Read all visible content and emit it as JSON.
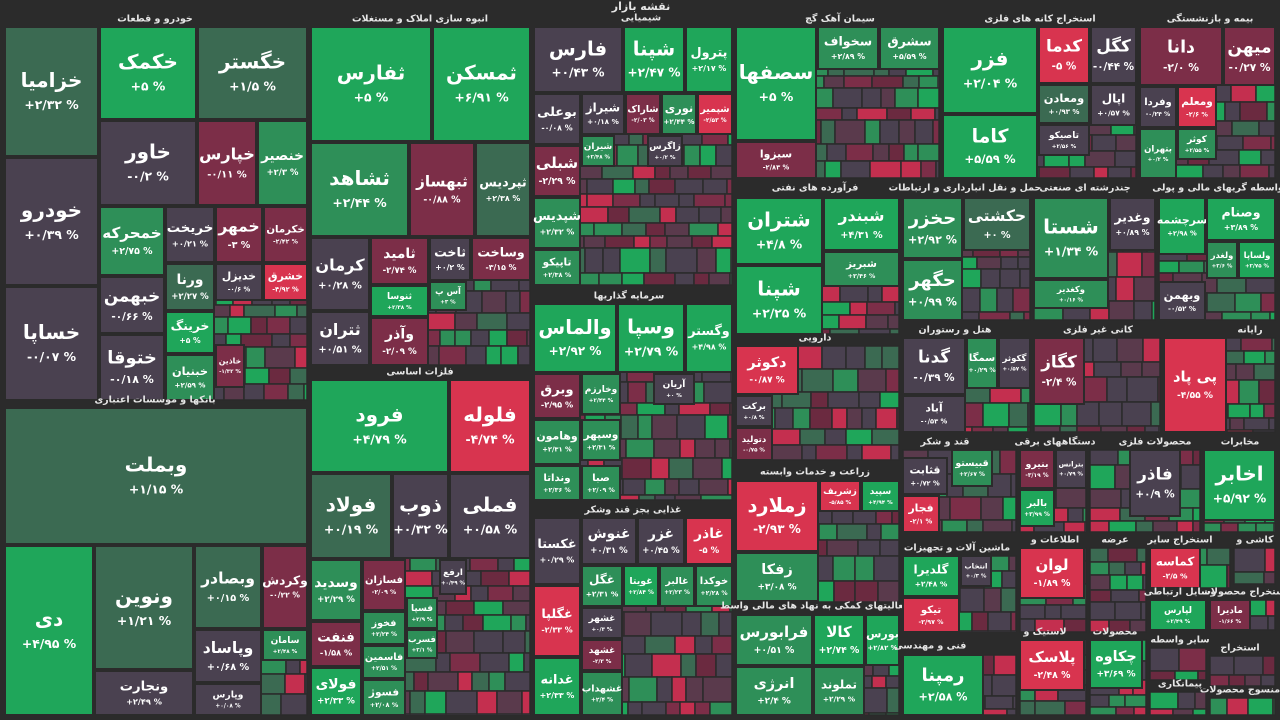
{
  "title": "نقشه بازار",
  "sectors": [
    {
      "name": "خودرو و قطعات",
      "tiles": [
        {
          "name": "خزامیا",
          "change": "+۲/۳۲ %"
        },
        {
          "name": "خودرو",
          "change": "+۰/۳۹ %"
        },
        {
          "name": "خساپا",
          "change": "-۰/۰۷ %"
        },
        {
          "name": "خکمک",
          "change": "+۵ %"
        },
        {
          "name": "خگستر",
          "change": "+۱/۵ %"
        },
        {
          "name": "خاور",
          "change": "-۰/۲ %"
        },
        {
          "name": "خپارس",
          "change": "-۰/۱۱ %"
        },
        {
          "name": "خنصیر",
          "change": "+۲/۳ %"
        },
        {
          "name": "خمحرکه",
          "change": "+۲/۷۵ %"
        },
        {
          "name": "خریخت",
          "change": "+۰/۲۱ %"
        },
        {
          "name": "خمهر",
          "change": "-۳ %"
        },
        {
          "name": "خکرمان",
          "change": "-۲/۴۲ %"
        },
        {
          "name": "خبهمن",
          "change": "-۰/۶۶ %"
        },
        {
          "name": "ورنا",
          "change": "+۲/۲۷ %"
        },
        {
          "name": "خدیزل",
          "change": "-۰/۶ %"
        },
        {
          "name": "خشرق",
          "change": "-۴/۹۲ %"
        },
        {
          "name": "خرینگ",
          "change": "+۵ %"
        },
        {
          "name": "ختوقا",
          "change": "-۰/۱۸ %"
        },
        {
          "name": "خبنیان",
          "change": "+۲/۵۹ %"
        },
        {
          "name": "خاذین",
          "change": "-۱/۳۲ %"
        }
      ]
    },
    {
      "name": "بانکها و موسسات اعتباری",
      "tiles": [
        {
          "name": "وبملت",
          "change": "+۱/۱۵ %"
        },
        {
          "name": "دی",
          "change": "+۴/۹۵ %"
        },
        {
          "name": "ونوین",
          "change": "+۱/۲۱ %"
        },
        {
          "name": "وبصادر",
          "change": "+۰/۱۵ %"
        },
        {
          "name": "وکردش",
          "change": "-۰/۲۲ %"
        },
        {
          "name": "ونجارت",
          "change": "+۲/۴۹ %"
        },
        {
          "name": "وپاساد",
          "change": "+۰/۶۸ %"
        },
        {
          "name": "سامان",
          "change": "+۲/۴۸ %"
        },
        {
          "name": "وپارس",
          "change": "+۰/۰۸ %"
        }
      ]
    },
    {
      "name": "انبوه سازی املاک و مستغلات",
      "tiles": [
        {
          "name": "ثفارس",
          "change": "+۵ %"
        },
        {
          "name": "ثمسکن",
          "change": "+۶/۹۱ %"
        },
        {
          "name": "ثشاهد",
          "change": "+۲/۴۴ %"
        },
        {
          "name": "ثبهساز",
          "change": "-۰/۸۸ %"
        },
        {
          "name": "ثپردیس",
          "change": "+۲/۳۸ %"
        },
        {
          "name": "کرمان",
          "change": "+۰/۲۸ %"
        },
        {
          "name": "ثامید",
          "change": "-۲/۷۴ %"
        },
        {
          "name": "ثاخت",
          "change": "+۰/۲ %"
        },
        {
          "name": "وساخت",
          "change": "-۳/۱۵ %"
        },
        {
          "name": "ثنوسا",
          "change": "+۲/۳۸ %"
        },
        {
          "name": "آس پ",
          "change": "+۳ %"
        },
        {
          "name": "ثتران",
          "change": "+۰/۵۱ %"
        },
        {
          "name": "وآذر",
          "change": "-۲/۰۹ %"
        }
      ]
    },
    {
      "name": "فلزات اساسی",
      "tiles": [
        {
          "name": "فرود",
          "change": "+۴/۷۹ %"
        },
        {
          "name": "فلوله",
          "change": "-۴/۷۴ %"
        },
        {
          "name": "فولاد",
          "change": "+۰/۱۹ %"
        },
        {
          "name": "ذوب",
          "change": "+۰/۳۲ %"
        },
        {
          "name": "فملی",
          "change": "+۰/۵۸ %"
        },
        {
          "name": "فسازان",
          "change": "-۲/۰۹ %"
        },
        {
          "name": "ارفع",
          "change": "+۰/۴۹ %"
        },
        {
          "name": "وسدید",
          "change": "+۲/۲۹ %"
        },
        {
          "name": "فنفت",
          "change": "-۱/۵۸ %"
        },
        {
          "name": "فخوز",
          "change": "+۲/۲۴ %"
        },
        {
          "name": "فولای",
          "change": "+۲/۳۳ %"
        },
        {
          "name": "فاسمین",
          "change": "+۲/۵۱ %"
        },
        {
          "name": "فسپا",
          "change": "+۲/۹ %"
        },
        {
          "name": "فسرب",
          "change": "+۲/۱ %"
        },
        {
          "name": "فسوژ",
          "change": "+۲/۰۸ %"
        }
      ]
    },
    {
      "name": "شیمیایی",
      "tiles": [
        {
          "name": "فارس",
          "change": "+۰/۴۳ %"
        },
        {
          "name": "شپنا",
          "change": "+۲/۴۷ %"
        },
        {
          "name": "پترول",
          "change": "+۲/۱۷ %"
        },
        {
          "name": "بوعلی",
          "change": "-۰/۰۸ %"
        },
        {
          "name": "شیراز",
          "change": "+۰/۱۸ %"
        },
        {
          "name": "شاراک",
          "change": "-۲/۰۳ %"
        },
        {
          "name": "نوری",
          "change": "+۲/۴۴ %"
        },
        {
          "name": "شپمیر",
          "change": "-۲/۵۳ %"
        },
        {
          "name": "شیران",
          "change": "+۲/۴۸ %"
        },
        {
          "name": "زاگرس",
          "change": "+۰/۲ %"
        },
        {
          "name": "شبلی",
          "change": "-۲/۲۹ %"
        },
        {
          "name": "شپدیس",
          "change": "+۲/۳۲ %"
        },
        {
          "name": "تاپیکو",
          "change": "+۲/۳۸ %"
        }
      ]
    },
    {
      "name": "سرمایه گذاریها",
      "tiles": [
        {
          "name": "والماس",
          "change": "+۲/۹۲ %"
        },
        {
          "name": "وسپا",
          "change": "+۲/۷۹ %"
        },
        {
          "name": "وگستر",
          "change": "+۴/۹۸ %"
        },
        {
          "name": "وبرق",
          "change": "-۲/۹۵ %"
        },
        {
          "name": "وخارزم",
          "change": "+۲/۴۴ %"
        },
        {
          "name": "آریان",
          "change": "+۰ %"
        },
        {
          "name": "وهامون",
          "change": "+۲/۳۱ %"
        },
        {
          "name": "وسپهر",
          "change": "+۲/۳۱ %"
        },
        {
          "name": "ونداتا",
          "change": "+۲/۳۶ %"
        },
        {
          "name": "صبا",
          "change": "+۲/۰۹ %"
        }
      ]
    },
    {
      "name": "غذایی بجز قند وشکر",
      "tiles": [
        {
          "name": "غکستا",
          "change": "+۰/۲۹ %"
        },
        {
          "name": "غنوش",
          "change": "+۰/۳۱ %"
        },
        {
          "name": "غزر",
          "change": "+۰/۴۵ %"
        },
        {
          "name": "غاذر",
          "change": "-۵ %"
        },
        {
          "name": "غگل",
          "change": "+۲/۳۱ %"
        },
        {
          "name": "غویتا",
          "change": "+۲/۸۴ %"
        },
        {
          "name": "غالبر",
          "change": "+۲/۲۳ %"
        },
        {
          "name": "خوکدا",
          "change": "+۲/۲۸ %"
        },
        {
          "name": "غگلپا",
          "change": "-۲/۳۳ %"
        },
        {
          "name": "غشهر",
          "change": "+۰/۳ %"
        },
        {
          "name": "غشهد",
          "change": "-۲/۳ %"
        },
        {
          "name": "غدانه",
          "change": "+۲/۳۳ %"
        },
        {
          "name": "غشهداب",
          "change": "+۲/۴ %"
        }
      ]
    },
    {
      "name": "سیمان آهک گچ",
      "tiles": [
        {
          "name": "سصفها",
          "change": "+۵ %"
        },
        {
          "name": "سخواف",
          "change": "+۲/۸۹ %"
        },
        {
          "name": "سشرق",
          "change": "+۵/۵۹ %"
        },
        {
          "name": "سیزوا",
          "change": "-۲/۸۳ %"
        }
      ]
    },
    {
      "name": "فرآورده های نفتی",
      "tiles": [
        {
          "name": "شتران",
          "change": "+۴/۸ %"
        },
        {
          "name": "شبندر",
          "change": "+۴/۳۱ %"
        },
        {
          "name": "شبریز",
          "change": "+۲/۴۶ %"
        },
        {
          "name": "شپنا",
          "change": "+۲/۲۵ %"
        }
      ]
    },
    {
      "name": "دارویی",
      "tiles": [
        {
          "name": "دکوثر",
          "change": "-۰/۸۷ %"
        },
        {
          "name": "برکت",
          "change": "+۰/۸ %"
        },
        {
          "name": "دتولید",
          "change": "-۰/۷۵ %"
        }
      ]
    },
    {
      "name": "زراعت و خدمات وابسته",
      "tiles": [
        {
          "name": "زملارد",
          "change": "-۲/۹۳ %"
        },
        {
          "name": "زشریف",
          "change": "-۵/۸۵ %"
        },
        {
          "name": "سپید",
          "change": "+۴/۹۴ %"
        },
        {
          "name": "زفکا",
          "change": "+۳/۰۸ %"
        }
      ]
    },
    {
      "name": "فعالیتهای کمکی به نهاد های مالی واسط",
      "tiles": [
        {
          "name": "فرابورس",
          "change": "+۰/۵۱ %"
        },
        {
          "name": "کالا",
          "change": "+۲/۷۴ %"
        },
        {
          "name": "بورس",
          "change": "+۲/۸۲ %"
        },
        {
          "name": "انرژی",
          "change": "+۲/۴ %"
        },
        {
          "name": "تملوند",
          "change": "+۲/۲۹ %"
        }
      ]
    },
    {
      "name": "استخراج کانه های فلزی",
      "tiles": [
        {
          "name": "فزر",
          "change": "+۲/۰۴ %"
        },
        {
          "name": "کدما",
          "change": "-۵ %"
        },
        {
          "name": "کگل",
          "change": "-۰/۴۴ %"
        },
        {
          "name": "ومعادن",
          "change": "+۰/۹۳ %"
        },
        {
          "name": "اپال",
          "change": "+۰/۵۷ %"
        },
        {
          "name": "کاما",
          "change": "+۵/۵۹ %"
        },
        {
          "name": "تاصیکو",
          "change": "+۲/۵۶ %"
        }
      ]
    },
    {
      "name": "بیمه و بازنشستگی",
      "tiles": [
        {
          "name": "دانا",
          "change": "-۲/۰ %"
        },
        {
          "name": "میهن",
          "change": "-۰/۲۷ %"
        },
        {
          "name": "وفردا",
          "change": "-۰/۲۴ %"
        },
        {
          "name": "ومعلم",
          "change": "-۲/۶ %"
        },
        {
          "name": "کوثر",
          "change": "+۲/۵۵ %"
        },
        {
          "name": "بتهران",
          "change": "+۰/۲ %"
        }
      ]
    },
    {
      "name": "حمل و نقل انبارداری و ارتباطات",
      "tiles": [
        {
          "name": "حکشتی",
          "change": "+۰ %"
        },
        {
          "name": "حخزر",
          "change": "+۲/۹۲ %"
        },
        {
          "name": "حگهر",
          "change": "+۰/۹۹ %"
        }
      ]
    },
    {
      "name": "چندرشته ای صنعتی",
      "tiles": [
        {
          "name": "شستا",
          "change": "+۱/۳۴ %"
        },
        {
          "name": "وغدیر",
          "change": "+۰/۸۹ %"
        },
        {
          "name": "وکغدیر",
          "change": "+۰/۱۶ %"
        }
      ]
    },
    {
      "name": "واسطه گریهای مالی و پولی",
      "tiles": [
        {
          "name": "سرچشمه",
          "change": "+۲/۹۸ %"
        },
        {
          "name": "وصنام",
          "change": "+۳/۸۹ %"
        },
        {
          "name": "ولغدر",
          "change": "+۲/۶ %"
        },
        {
          "name": "ولساپا",
          "change": "+۲/۷۵ %"
        },
        {
          "name": "وبهمن",
          "change": "-۰/۵۲ %"
        }
      ]
    },
    {
      "name": "هتل و رستوران",
      "tiles": [
        {
          "name": "گدنا",
          "change": "-۰/۳۹ %"
        },
        {
          "name": "سمگا",
          "change": "+۰/۲۹ %"
        },
        {
          "name": "گکوثر",
          "change": "+۰/۵۷ %"
        },
        {
          "name": "آباد",
          "change": "-۰/۵۳ %"
        }
      ]
    },
    {
      "name": "کانی غیر فلزی",
      "tiles": [
        {
          "name": "کگاز",
          "change": "-۲/۴ %"
        }
      ]
    },
    {
      "name": "رایانه",
      "tiles": [
        {
          "name": "پی پاد",
          "change": "-۴/۵۵ %"
        }
      ]
    },
    {
      "name": "قند و شکر",
      "tiles": [
        {
          "name": "قثابت",
          "change": "+۰/۷۲ %"
        },
        {
          "name": "قبیستو",
          "change": "+۲/۶۷ %"
        },
        {
          "name": "فجار",
          "change": "-۲/۱ %"
        }
      ]
    },
    {
      "name": "دستگاههای برقی",
      "tiles": [
        {
          "name": "بنیرو",
          "change": "-۳/۱۹ %"
        },
        {
          "name": "بترانس",
          "change": "+۰/۷۹ %"
        },
        {
          "name": "بالبر",
          "change": "+۳/۹۹ %"
        }
      ]
    },
    {
      "name": "محصولات فلزی",
      "tiles": [
        {
          "name": "فاذر",
          "change": "+۰/۹ %"
        }
      ]
    },
    {
      "name": "مخابرات",
      "tiles": [
        {
          "name": "اخابر",
          "change": "+۵/۹۲ %"
        }
      ]
    },
    {
      "name": "ماشین آلات و تجهیزات",
      "tiles": [
        {
          "name": "گلدیرا",
          "change": "+۲/۴۸ %"
        },
        {
          "name": "انتخاب",
          "change": "+۰/۳ %"
        },
        {
          "name": "تیکو",
          "change": "-۲/۹۷ %"
        }
      ]
    },
    {
      "name": "اطلاعات و",
      "tiles": [
        {
          "name": "لوان",
          "change": "-۱/۸۹ %"
        }
      ]
    },
    {
      "name": "عرضه",
      "tiles": []
    },
    {
      "name": "استخراج سایر",
      "tiles": [
        {
          "name": "کماسه",
          "change": "-۲/۵ %"
        }
      ]
    },
    {
      "name": "کاشی و",
      "tiles": []
    },
    {
      "name": "وسایل ارتباطی",
      "tiles": [
        {
          "name": "لپارس",
          "change": "+۲/۴۹ %"
        }
      ]
    },
    {
      "name": "استخراج محصولات",
      "tiles": [
        {
          "name": "مادیرا",
          "change": "-۱/۶۶ %"
        }
      ]
    },
    {
      "name": "فنی و مهندسی",
      "tiles": [
        {
          "name": "رمپنا",
          "change": "+۲/۵۸ %"
        }
      ]
    },
    {
      "name": "لاستیک و",
      "tiles": [
        {
          "name": "پلاسک",
          "change": "-۲/۴۸ %"
        }
      ]
    },
    {
      "name": "محصولات",
      "tiles": [
        {
          "name": "چکاوه",
          "change": "+۳/۶۹ %"
        }
      ]
    },
    {
      "name": "سایر واسطه",
      "tiles": []
    },
    {
      "name": "پیمانکاری",
      "tiles": []
    },
    {
      "name": "استخراج",
      "tiles": []
    },
    {
      "name": "منسوج محصولات",
      "tiles": []
    }
  ]
}
